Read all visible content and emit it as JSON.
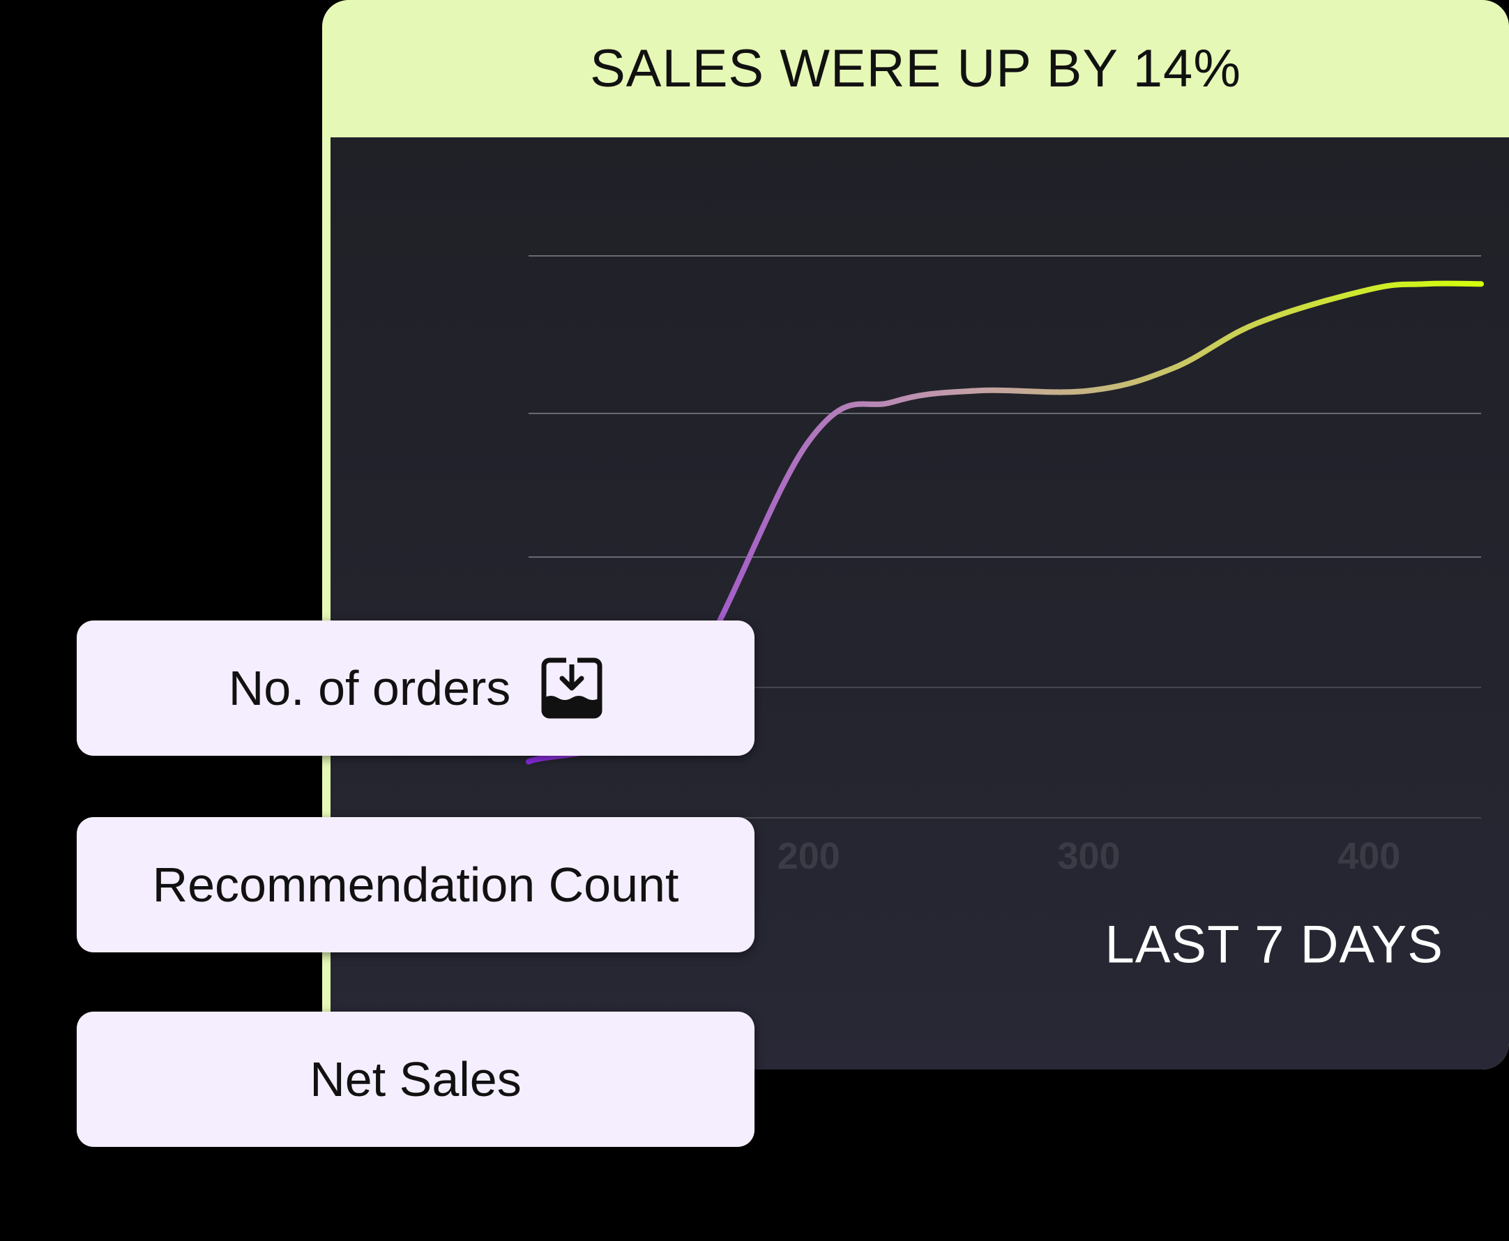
{
  "card": {
    "title": "SALES WERE UP BY 14%",
    "period": "LAST 7 DAYS",
    "header_color": "#E6F8B6",
    "body_color": "#23232C"
  },
  "metrics": [
    {
      "label": "No. of orders",
      "icon": "inbox-download-icon"
    },
    {
      "label": "Recommendation Count",
      "icon": ""
    },
    {
      "label": "Net Sales",
      "icon": ""
    }
  ],
  "chart_data": {
    "type": "line",
    "x_ticks": [
      "200",
      "300",
      "400"
    ],
    "grid": true,
    "line_gradient": [
      "#8A2BE2",
      "#C39DAA",
      "#D2FF0A"
    ],
    "series": [
      {
        "x": [
          100,
          150,
          200,
          230,
          260,
          300,
          330,
          360,
          400,
          420,
          440
        ],
        "values": [
          10,
          20,
          67,
          74,
          76,
          76,
          80,
          88,
          94,
          95,
          95
        ]
      }
    ],
    "xlim": [
      100,
      440
    ],
    "ylim": [
      0,
      100
    ]
  }
}
